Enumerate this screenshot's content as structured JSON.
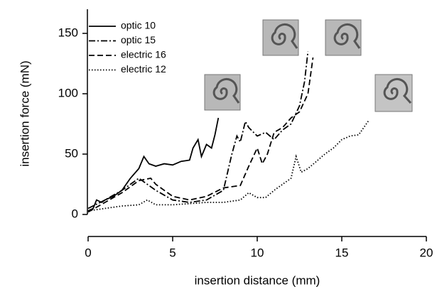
{
  "chart_data": {
    "type": "line",
    "xlabel": "insertion distance (mm)",
    "ylabel": "insertion force (mN)",
    "xlim": [
      0,
      20
    ],
    "ylim": [
      0,
      170
    ],
    "xticks": [
      0,
      5,
      10,
      15,
      20
    ],
    "yticks": [
      0,
      50,
      100,
      150
    ],
    "legend": "top-left",
    "series": [
      {
        "name": "optic 10",
        "color": "#000000",
        "dash": "solid",
        "x": [
          0,
          0.3,
          0.5,
          0.8,
          1,
          1.5,
          2,
          2.5,
          3,
          3.3,
          3.6,
          4,
          4.5,
          5,
          5.5,
          6,
          6.2,
          6.5,
          6.7,
          7,
          7.3,
          7.5,
          7.7
        ],
        "values": [
          3,
          5,
          12,
          10,
          12,
          15,
          20,
          30,
          38,
          48,
          42,
          40,
          42,
          41,
          44,
          45,
          55,
          62,
          48,
          58,
          55,
          66,
          80
        ]
      },
      {
        "name": "optic 15",
        "color": "#000000",
        "dash": "dashdot",
        "x": [
          0,
          1,
          2,
          2.5,
          3,
          3.5,
          4,
          5,
          6,
          7,
          8,
          8.5,
          8.8,
          9,
          9.3,
          9.5,
          10,
          10.5,
          11,
          11.5,
          12,
          12.5,
          12.8,
          13
        ],
        "values": [
          5,
          12,
          20,
          25,
          30,
          25,
          20,
          12,
          10,
          12,
          20,
          50,
          65,
          60,
          77,
          72,
          65,
          68,
          62,
          70,
          75,
          90,
          110,
          135
        ]
      },
      {
        "name": "electric 16",
        "color": "#000000",
        "dash": "dashed",
        "x": [
          0,
          1,
          2,
          3,
          3.7,
          4,
          5,
          6,
          7,
          8,
          9,
          9.5,
          10,
          10.3,
          10.6,
          11,
          11.5,
          12,
          12.5,
          13,
          13.3
        ],
        "values": [
          2,
          10,
          18,
          28,
          30,
          25,
          15,
          12,
          15,
          22,
          24,
          40,
          55,
          42,
          50,
          68,
          72,
          80,
          85,
          100,
          130
        ]
      },
      {
        "name": "electric 12",
        "color": "#000000",
        "dash": "dotted",
        "x": [
          0,
          1,
          2,
          3,
          3.5,
          4,
          5,
          6,
          7,
          8,
          9,
          9.5,
          10,
          10.5,
          11,
          12,
          12.3,
          12.6,
          13,
          14,
          14.5,
          15,
          15.5,
          16,
          16.6
        ],
        "values": [
          3,
          5,
          7,
          8,
          12,
          8,
          8,
          9,
          10,
          10,
          12,
          18,
          14,
          14,
          20,
          30,
          48,
          35,
          38,
          50,
          55,
          62,
          65,
          66,
          78
        ]
      }
    ]
  }
}
